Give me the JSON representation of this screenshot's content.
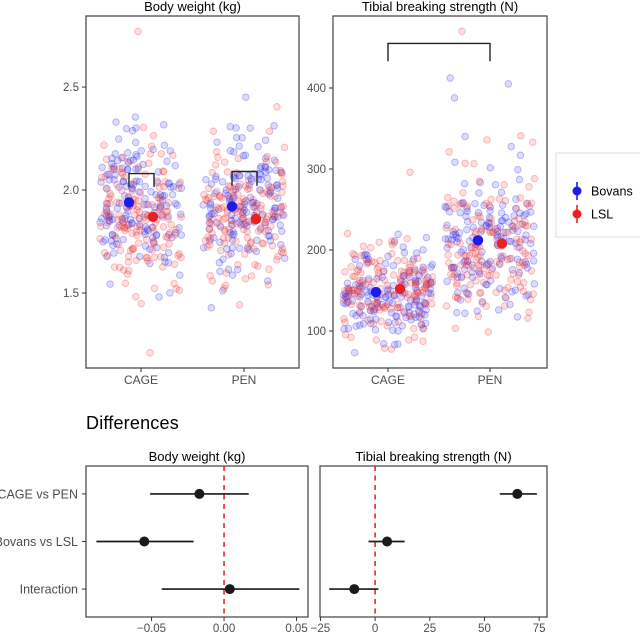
{
  "differences_heading": "Differences",
  "colors": {
    "bovans": "#1c1ce8",
    "lsl": "#ea2121",
    "scatter_blue": "#2222ee",
    "scatter_red": "#ee3333",
    "zero_line_red": "#e12b2b",
    "black_point": "#1a1a1a",
    "axis_text": "#4d4d4d",
    "panel_border": "#404040",
    "tick": "#333333",
    "bracket": "#222222",
    "legend_box_border": "#dcdcdc"
  },
  "legend": {
    "items": [
      {
        "label": "Bovans",
        "color_key": "bovans"
      },
      {
        "label": "LSL",
        "color_key": "lsl"
      }
    ]
  },
  "chart_data": [
    {
      "id": "bodyweight_scatter",
      "type": "scatter",
      "title": "Body weight (kg)",
      "x_categories": [
        "CAGE",
        "PEN"
      ],
      "y_ticks": [
        1.5,
        2.0,
        2.5
      ],
      "y_tick_labels": [
        "1.5",
        "2.0",
        "2.5"
      ],
      "y_range": [
        1.136,
        2.845
      ],
      "group_means": [
        {
          "group": "CAGE",
          "strain": "Bovans",
          "value": 1.94
        },
        {
          "group": "CAGE",
          "strain": "LSL",
          "value": 1.87
        },
        {
          "group": "PEN",
          "strain": "Bovans",
          "value": 1.92
        },
        {
          "group": "PEN",
          "strain": "LSL",
          "value": 1.86
        }
      ],
      "jitter": {
        "seed": 101,
        "n_per_series": 150,
        "groups": {
          "CAGE": {
            "sd_main": 0.17,
            "sd_tail": 0.3,
            "tail_frac": 0.08,
            "clip": [
              1.32,
              2.6
            ]
          },
          "PEN": {
            "sd_main": 0.17,
            "sd_tail": 0.3,
            "tail_frac": 0.08,
            "clip": [
              1.38,
              2.64
            ]
          }
        },
        "extra_points": [
          {
            "group": "CAGE",
            "strain": "LSL",
            "value": 2.77,
            "x_offset": -3
          },
          {
            "group": "CAGE",
            "strain": "LSL",
            "value": 1.21,
            "x_offset": 9
          }
        ]
      },
      "brackets": [
        {
          "kind": "within-group",
          "group": "CAGE",
          "y_top": 2.08,
          "y_leg": 2.015
        },
        {
          "kind": "within-group",
          "group": "PEN",
          "y_top": 2.09,
          "y_leg": 2.02
        }
      ]
    },
    {
      "id": "tibial_scatter",
      "type": "scatter",
      "title": "Tibial breaking strength (N)",
      "x_categories": [
        "CAGE",
        "PEN"
      ],
      "y_ticks": [
        100,
        200,
        300,
        400
      ],
      "y_tick_labels": [
        "100",
        "200",
        "300",
        "400"
      ],
      "y_range": [
        54.3,
        488.9
      ],
      "group_means": [
        {
          "group": "CAGE",
          "strain": "Bovans",
          "value": 148
        },
        {
          "group": "CAGE",
          "strain": "LSL",
          "value": 152
        },
        {
          "group": "PEN",
          "strain": "Bovans",
          "value": 212
        },
        {
          "group": "PEN",
          "strain": "LSL",
          "value": 208
        }
      ],
      "jitter": {
        "seed": 202,
        "n_per_series": 150,
        "groups": {
          "CAGE": {
            "sd_main": 30,
            "sd_tail": 62,
            "tail_frac": 0.1,
            "clip": [
              68,
              385
            ]
          },
          "PEN": {
            "sd_main": 46,
            "sd_tail": 82,
            "tail_frac": 0.1,
            "clip": [
              85,
              430
            ]
          }
        },
        "extra_points": [
          {
            "group": "PEN",
            "strain": "LSL",
            "value": 470,
            "x_offset": -28
          }
        ]
      },
      "brackets": [
        {
          "kind": "between-groups",
          "y_top": 455,
          "y_leg": 433
        }
      ]
    },
    {
      "id": "bodyweight_differences",
      "type": "forest",
      "title": "Body weight (kg)",
      "rows": [
        "CAGE vs PEN",
        "Bovans vs LSL",
        "Interaction"
      ],
      "show_row_labels": true,
      "x_ticks": [
        -0.05,
        0.0,
        0.05
      ],
      "x_tick_labels": [
        "−0.05",
        "0.00",
        "0.05"
      ],
      "x_range": [
        -0.0952,
        0.0579
      ],
      "zero_line": 0,
      "estimates": [
        {
          "label": "CAGE vs PEN",
          "est": -0.017,
          "lo": -0.051,
          "hi": 0.017
        },
        {
          "label": "Bovans vs LSL",
          "est": -0.055,
          "lo": -0.088,
          "hi": -0.021
        },
        {
          "label": "Interaction",
          "est": 0.004,
          "lo": -0.043,
          "hi": 0.052
        }
      ]
    },
    {
      "id": "tibial_differences",
      "type": "forest",
      "title": "Tibial breaking strength (N)",
      "rows": [
        "CAGE vs PEN",
        "Bovans vs LSL",
        "Interaction"
      ],
      "show_row_labels": false,
      "x_ticks": [
        -25,
        0,
        25,
        50,
        75
      ],
      "x_tick_labels": [
        "−25",
        "0",
        "25",
        "50",
        "75"
      ],
      "x_range": [
        -25.2,
        78.6
      ],
      "zero_line": 0,
      "estimates": [
        {
          "label": "CAGE vs PEN",
          "est": 65,
          "lo": 57,
          "hi": 74
        },
        {
          "label": "Bovans vs LSL",
          "est": 5.5,
          "lo": -3,
          "hi": 13.5
        },
        {
          "label": "Interaction",
          "est": -9.5,
          "lo": -21,
          "hi": 1.5
        }
      ]
    }
  ]
}
